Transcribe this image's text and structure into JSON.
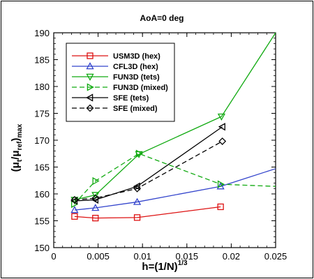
{
  "chart_data": {
    "type": "line",
    "title": "AoA=0 deg",
    "xlabel": {
      "base": "h=(1/N)",
      "sup": "1/3"
    },
    "ylabel": {
      "open": "(μ",
      "sub1": "t",
      "mid": "/μ",
      "sub2": "ref",
      "close": ")",
      "sub3": "max"
    },
    "xlim": [
      0,
      0.025
    ],
    "ylim": [
      150,
      190
    ],
    "x_ticks": [
      "0",
      "0.005",
      "0.01",
      "0.015",
      "0.02",
      "0.025"
    ],
    "x_tick_values": [
      0,
      0.005,
      0.01,
      0.015,
      0.02,
      0.025
    ],
    "y_ticks": [
      "150",
      "155",
      "160",
      "165",
      "170",
      "175",
      "180",
      "185",
      "190"
    ],
    "y_tick_values": [
      150,
      155,
      160,
      165,
      170,
      175,
      180,
      185,
      190
    ],
    "legend_position": "top-left",
    "series": [
      {
        "name": "USM3D (hex)",
        "color": "#dd1111",
        "marker": "square",
        "dashed": false,
        "x": [
          0.00235,
          0.0047,
          0.0094,
          0.0188
        ],
        "y": [
          155.8,
          155.5,
          155.6,
          157.6
        ]
      },
      {
        "name": "CFL3D (hex)",
        "color": "#3344cc",
        "marker": "triangle-up",
        "dashed": false,
        "x": [
          0.00235,
          0.0047,
          0.0094,
          0.0188
        ],
        "y": [
          157.0,
          157.4,
          158.5,
          161.4
        ],
        "trend_x": [
          0.0188,
          0.025
        ],
        "trend_y": [
          161.4,
          164.7
        ]
      },
      {
        "name": "FUN3D (tets)",
        "color": "#11aa11",
        "marker": "triangle-down",
        "dashed": false,
        "x": [
          0.00235,
          0.0047,
          0.0096,
          0.0189
        ],
        "y": [
          158.9,
          159.8,
          167.4,
          174.4
        ],
        "trend_x": [
          0.0189,
          0.025
        ],
        "trend_y": [
          174.4,
          190.0
        ]
      },
      {
        "name": "FUN3D (mixed)",
        "color": "#11aa11",
        "marker": "triangle-right",
        "dashed": true,
        "x": [
          0.0023,
          0.0047,
          0.0096,
          0.0188,
          0.025
        ],
        "y": [
          158.1,
          162.4,
          167.5,
          161.8,
          161.4
        ]
      },
      {
        "name": "SFE (tets)",
        "color": "#000000",
        "marker": "triangle-left",
        "dashed": false,
        "x": [
          0.00235,
          0.0047,
          0.0094,
          0.019
        ],
        "y": [
          158.7,
          158.9,
          161.4,
          172.5
        ]
      },
      {
        "name": "SFE (mixed)",
        "color": "#000000",
        "marker": "diamond",
        "dashed": true,
        "x": [
          0.00235,
          0.0047,
          0.0094,
          0.019
        ],
        "y": [
          158.9,
          159.2,
          161.0,
          169.8
        ]
      }
    ]
  }
}
